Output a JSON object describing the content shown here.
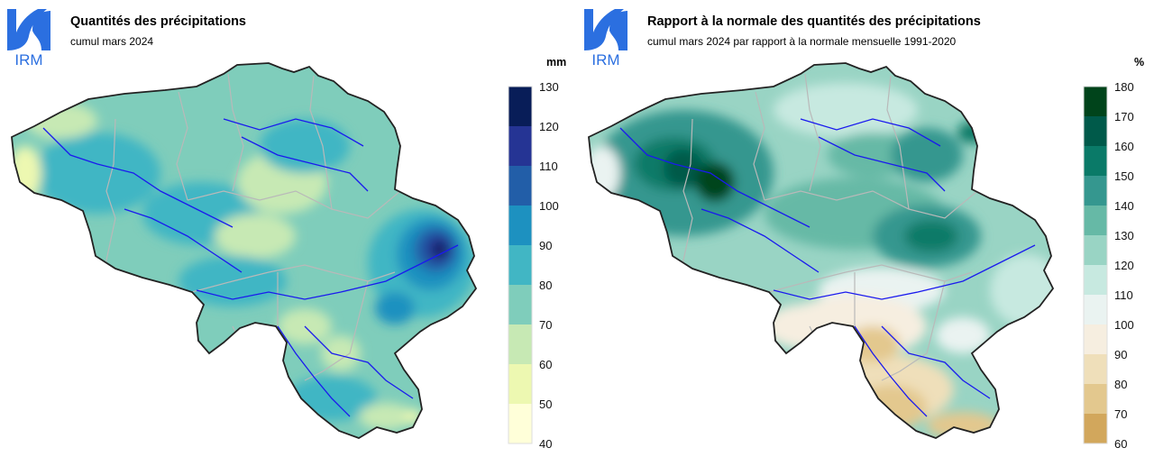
{
  "panels": [
    {
      "logo_text": "IRM",
      "title": "Quantités des précipitations",
      "subtitle": "cumul mars 2024",
      "unit": "mm",
      "legend": {
        "ticks": [
          "130",
          "120",
          "110",
          "100",
          "90",
          "80",
          "70",
          "60",
          "50",
          "40"
        ],
        "colors": [
          "#081d58",
          "#253494",
          "#225ea8",
          "#1d91c0",
          "#41b6c4",
          "#7fcdbb",
          "#c7e9b4",
          "#edf8b1",
          "#ffffd9"
        ]
      },
      "palette": {
        "low": "#c7e9b4",
        "mid": "#7fcdbb",
        "high": "#41b6c4",
        "peak": "#253494",
        "top": "#081d58"
      }
    },
    {
      "logo_text": "IRM",
      "title": "Rapport à la normale des quantités des précipitations",
      "subtitle": "cumul mars 2024 par rapport à la normale mensuelle 1991-2020",
      "unit": "%",
      "legend": {
        "ticks": [
          "180",
          "170",
          "160",
          "150",
          "140",
          "130",
          "120",
          "110",
          "100",
          "90",
          "80",
          "70",
          "60"
        ],
        "colors": [
          "#00441b",
          "#005a4a",
          "#0a7a68",
          "#35978f",
          "#66b9a6",
          "#99d4c4",
          "#c7e9e0",
          "#eaf3f1",
          "#f6eee0",
          "#efdfba",
          "#e3c88e",
          "#d2a75c"
        ]
      },
      "palette": {
        "low": "#e8d2a2",
        "mid": "#c7e9e0",
        "high": "#66b9a6",
        "peak": "#0a7a68",
        "top": "#00441b"
      }
    }
  ]
}
